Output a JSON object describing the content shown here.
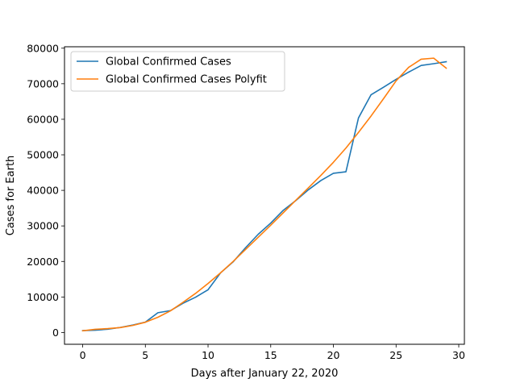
{
  "chart_data": {
    "type": "line",
    "title": "",
    "xlabel": "Days after January 22, 2020",
    "ylabel": "Cases for Earth",
    "xlim": [
      -1.45,
      30.45
    ],
    "ylim": [
      -3300,
      80400
    ],
    "xticks": [
      0,
      5,
      10,
      15,
      20,
      25,
      30
    ],
    "yticks": [
      0,
      10000,
      20000,
      30000,
      40000,
      50000,
      60000,
      70000,
      80000
    ],
    "grid": false,
    "legend_position": "top-left",
    "series": [
      {
        "name": "Global Confirmed Cases",
        "color": "#1f77b4",
        "x": [
          0,
          1,
          2,
          3,
          4,
          5,
          6,
          7,
          8,
          9,
          10,
          11,
          12,
          13,
          14,
          15,
          16,
          17,
          18,
          19,
          20,
          21,
          22,
          23,
          24,
          25,
          26,
          27,
          28,
          29
        ],
        "y": [
          555,
          654,
          941,
          1434,
          2118,
          2927,
          5578,
          6166,
          8234,
          9927,
          12038,
          16787,
          19881,
          23892,
          27635,
          30794,
          34391,
          37120,
          40150,
          42762,
          44802,
          45221,
          60368,
          66885,
          69030,
          71224,
          73258,
          75136,
          75639,
          76197
        ]
      },
      {
        "name": "Global Confirmed Cases Polyfit",
        "color": "#ff7f0e",
        "x": [
          0,
          1,
          2,
          3,
          4,
          5,
          6,
          7,
          8,
          9,
          10,
          11,
          12,
          13,
          14,
          15,
          16,
          17,
          18,
          19,
          20,
          21,
          22,
          23,
          24,
          25,
          26,
          27,
          28,
          29
        ],
        "y": [
          500,
          900,
          1100,
          1400,
          2000,
          2900,
          4300,
          6100,
          8500,
          11000,
          13800,
          16800,
          20000,
          23400,
          26800,
          30200,
          33700,
          37200,
          40700,
          44200,
          47900,
          51900,
          56300,
          60900,
          65800,
          70800,
          74600,
          76900,
          77200,
          74400
        ]
      }
    ]
  }
}
